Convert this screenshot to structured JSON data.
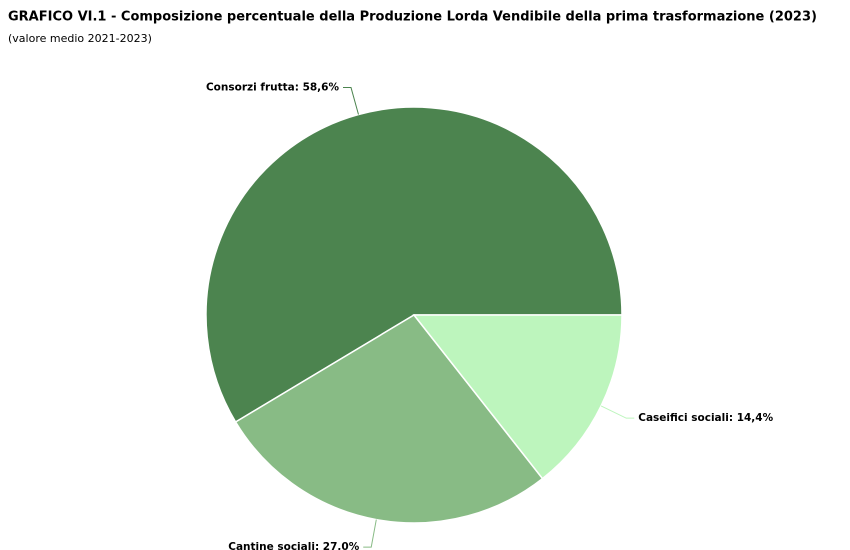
{
  "chart_data": {
    "type": "pie",
    "title": "GRAFICO VI.1 - Composizione percentuale della Produzione Lorda Vendibile della prima trasformazione (2023)",
    "subtitle": "(valore medio 2021-2023)",
    "values": [
      58.6,
      27.0,
      14.4
    ],
    "value_labels": [
      "Consorzi frutta: 58,6%",
      "Cantine sociali: 27,0%",
      "Caseifici sociali: 14,4%"
    ],
    "colors": [
      "#4c844f",
      "#88bb85",
      "#bdf5bd"
    ]
  }
}
